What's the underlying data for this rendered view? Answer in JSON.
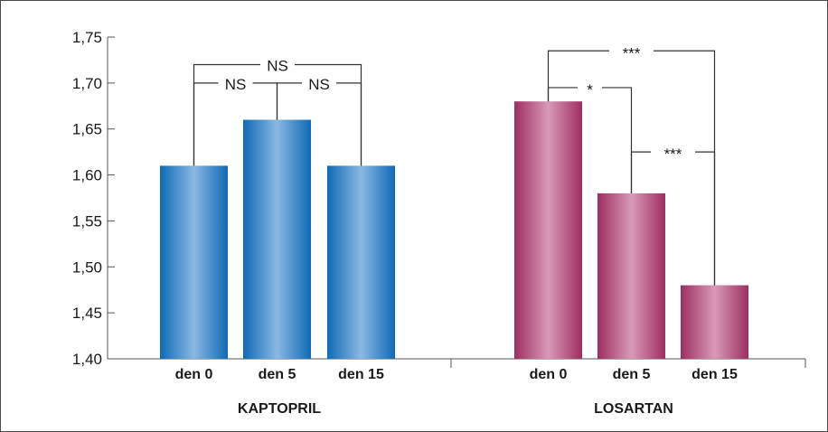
{
  "chart_data": {
    "type": "bar",
    "title": "",
    "xlabel": "",
    "ylabel": "",
    "ylim": [
      1.4,
      1.75
    ],
    "yticks": [
      "1,75",
      "1,70",
      "1,65",
      "1,60",
      "1,55",
      "1,50",
      "1,45",
      "1,40"
    ],
    "ytick_values": [
      1.75,
      1.7,
      1.65,
      1.6,
      1.55,
      1.5,
      1.45,
      1.4
    ],
    "grid": false,
    "groups": [
      {
        "label": "KAPTOPRIL",
        "color": "#1a78c2",
        "categories": [
          "den 0",
          "den 5",
          "den 15"
        ],
        "values": [
          1.61,
          1.66,
          1.61
        ],
        "comparisons": [
          {
            "from": 0,
            "to": 1,
            "label": "NS",
            "level": 1.7
          },
          {
            "from": 1,
            "to": 2,
            "label": "NS",
            "level": 1.7
          },
          {
            "from": 0,
            "to": 2,
            "label": "NS",
            "level": 1.72
          }
        ]
      },
      {
        "label": "LOSARTAN",
        "color": "#a83a6c",
        "categories": [
          "den 0",
          "den 5",
          "den 15"
        ],
        "values": [
          1.68,
          1.58,
          1.48
        ],
        "comparisons": [
          {
            "from": 0,
            "to": 1,
            "label": "*",
            "level": 1.695
          },
          {
            "from": 1,
            "to": 2,
            "label": "***",
            "level": 1.625
          },
          {
            "from": 0,
            "to": 2,
            "label": "***",
            "level": 1.735
          }
        ]
      }
    ]
  }
}
